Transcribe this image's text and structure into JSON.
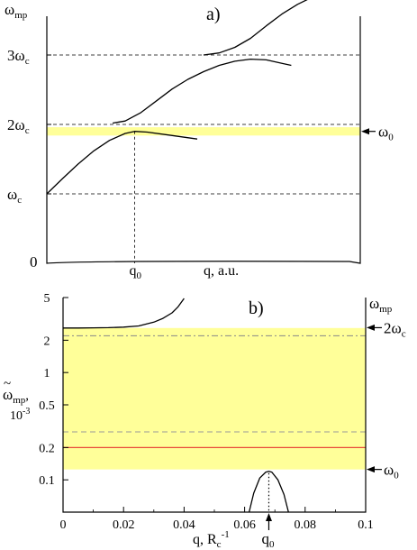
{
  "chart_data": [
    {
      "panel_label": "a)",
      "type": "line",
      "xlabel": "q, a.u.",
      "ylabel": "ω",
      "ylabel_sub": "mp",
      "x_tick": {
        "main": "q",
        "sub": "0"
      },
      "y_ticks": [
        {
          "main": "0",
          "sub": "",
          "mult": 0
        },
        {
          "main": "ω",
          "sub": "c",
          "mult": 1
        },
        {
          "main": "2ω",
          "sub": "c",
          "mult": 2
        },
        {
          "main": "3ω",
          "sub": "c",
          "mult": 3
        }
      ],
      "yellow_band_mult": [
        1.84,
        1.96
      ],
      "omega0_arrow": {
        "main": "ω",
        "sub": "0",
        "mult": 1.9
      },
      "dashed_levels_mult": [
        1,
        2,
        3
      ],
      "q0_fraction": 0.28,
      "curves": [
        {
          "x": [
            0.0,
            0.05,
            0.1,
            0.15,
            0.2,
            0.25,
            0.28,
            0.32,
            0.4,
            0.48
          ],
          "y": [
            1.0,
            1.22,
            1.43,
            1.62,
            1.77,
            1.87,
            1.9,
            1.89,
            1.84,
            1.79
          ]
        },
        {
          "x": [
            0.21,
            0.25,
            0.3,
            0.35,
            0.4,
            0.45,
            0.5,
            0.55,
            0.6,
            0.65,
            0.7,
            0.75,
            0.78
          ],
          "y": [
            2.02,
            2.05,
            2.17,
            2.34,
            2.51,
            2.65,
            2.76,
            2.85,
            2.91,
            2.94,
            2.93,
            2.88,
            2.85
          ]
        },
        {
          "x": [
            0.5,
            0.55,
            0.6,
            0.65,
            0.7,
            0.75,
            0.8,
            0.85,
            0.9,
            0.95,
            0.98
          ],
          "y": [
            3.0,
            3.03,
            3.11,
            3.24,
            3.42,
            3.59,
            3.73,
            3.84,
            3.9,
            3.92,
            3.91
          ]
        }
      ]
    },
    {
      "panel_label": "b)",
      "type": "line",
      "xlabel": {
        "main": "q, R",
        "sub": "c",
        "sup": "-1"
      },
      "ylabel": {
        "main": "ω",
        "sub": "mp",
        "tail": ",",
        "unit_base": "10",
        "unit_exp": "-3"
      },
      "right_label": {
        "main": "ω",
        "sub": "mp"
      },
      "yscale": "log",
      "xlim": [
        0,
        0.1
      ],
      "ylim": [
        0.05,
        5
      ],
      "x_ticks": [
        0,
        0.02,
        0.04,
        0.06,
        0.08,
        0.1
      ],
      "x_tick_labels": [
        "0",
        "0.02",
        "0.04",
        "0.06",
        "0.08",
        "0.1"
      ],
      "y_ticks": [
        0.1,
        0.2,
        0.5,
        1,
        2,
        5
      ],
      "y_tick_labels": [
        "0.1",
        "0.2",
        "0.5",
        "1",
        "2",
        "5"
      ],
      "yellow_band": [
        0.125,
        2.6
      ],
      "two_omega_c_level": 2.2,
      "two_omega_c_label": {
        "main": "2ω",
        "sub": "c"
      },
      "omega0_label": {
        "main": "ω",
        "sub": "0"
      },
      "omega0_level": 0.125,
      "red_line": 0.2,
      "red_color": "#e84a3a",
      "gray_dashed": 0.28,
      "q0_x": 0.068,
      "q0_label": {
        "main": "q",
        "sub": "0"
      },
      "band_color": "#ffff99",
      "curves": [
        {
          "x": [
            0.0,
            0.005,
            0.01,
            0.015,
            0.02,
            0.025,
            0.03,
            0.033,
            0.036,
            0.038,
            0.04
          ],
          "y": [
            2.6,
            2.6,
            2.61,
            2.62,
            2.65,
            2.72,
            2.95,
            3.2,
            3.6,
            4.1,
            4.9
          ]
        },
        {
          "x": [
            0.0615,
            0.063,
            0.065,
            0.067,
            0.068,
            0.069,
            0.071,
            0.073,
            0.0745
          ],
          "y": [
            0.05,
            0.075,
            0.104,
            0.118,
            0.12,
            0.118,
            0.1,
            0.073,
            0.05
          ]
        }
      ]
    }
  ]
}
